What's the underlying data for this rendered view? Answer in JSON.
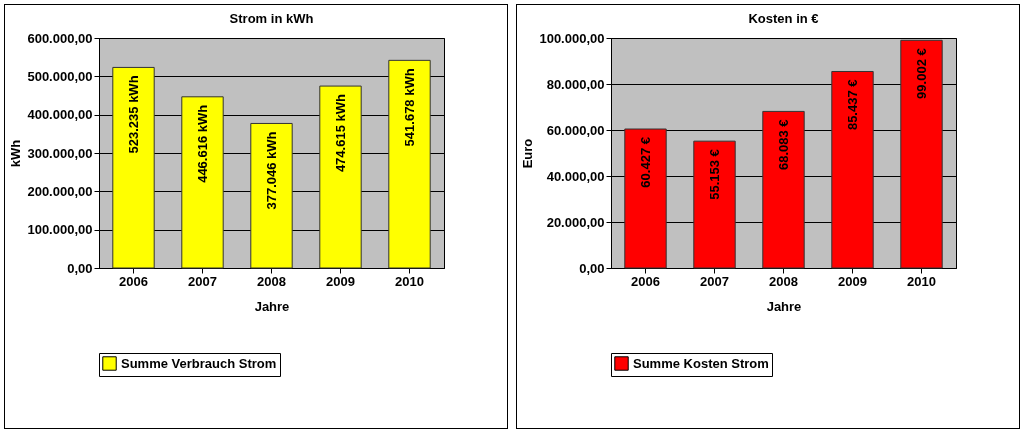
{
  "chart_data": [
    {
      "type": "bar",
      "title": "Strom in kWh",
      "xlabel": "Jahre",
      "ylabel": "kWh",
      "categories": [
        "2006",
        "2007",
        "2008",
        "2009",
        "2010"
      ],
      "series": [
        {
          "name": "Summe Verbrauch Strom",
          "color": "#ffff00",
          "values": [
            523235,
            446616,
            377046,
            474615,
            541678
          ],
          "value_labels": [
            "523.235 kWh",
            "446.616 kWh",
            "377.046 kWh",
            "474.615 kWh",
            "541.678 kWh"
          ]
        }
      ],
      "ylim": [
        0,
        600000
      ],
      "yticks": [
        {
          "value": 0,
          "label": "0,00"
        },
        {
          "value": 100000,
          "label": "100.000,00"
        },
        {
          "value": 200000,
          "label": "200.000,00"
        },
        {
          "value": 300000,
          "label": "300.000,00"
        },
        {
          "value": 400000,
          "label": "400.000,00"
        },
        {
          "value": 500000,
          "label": "500.000,00"
        },
        {
          "value": 600000,
          "label": "600.000,00"
        }
      ],
      "grid": "y",
      "legend": "bottom"
    },
    {
      "type": "bar",
      "title": "Kosten in €",
      "xlabel": "Jahre",
      "ylabel": "Euro",
      "categories": [
        "2006",
        "2007",
        "2008",
        "2009",
        "2010"
      ],
      "series": [
        {
          "name": "Summe Kosten Strom",
          "color": "#ff0000",
          "values": [
            60427,
            55153,
            68083,
            85437,
            99002
          ],
          "value_labels": [
            "60.427 €",
            "55.153 €",
            "68.083 €",
            "85.437 €",
            "99.002 €"
          ]
        }
      ],
      "ylim": [
        0,
        100000
      ],
      "yticks": [
        {
          "value": 0,
          "label": "0,00"
        },
        {
          "value": 20000,
          "label": "20.000,00"
        },
        {
          "value": 40000,
          "label": "40.000,00"
        },
        {
          "value": 60000,
          "label": "60.000,00"
        },
        {
          "value": 80000,
          "label": "80.000,00"
        },
        {
          "value": 100000,
          "label": "100.000,00"
        }
      ],
      "grid": "y",
      "legend": "bottom"
    }
  ]
}
